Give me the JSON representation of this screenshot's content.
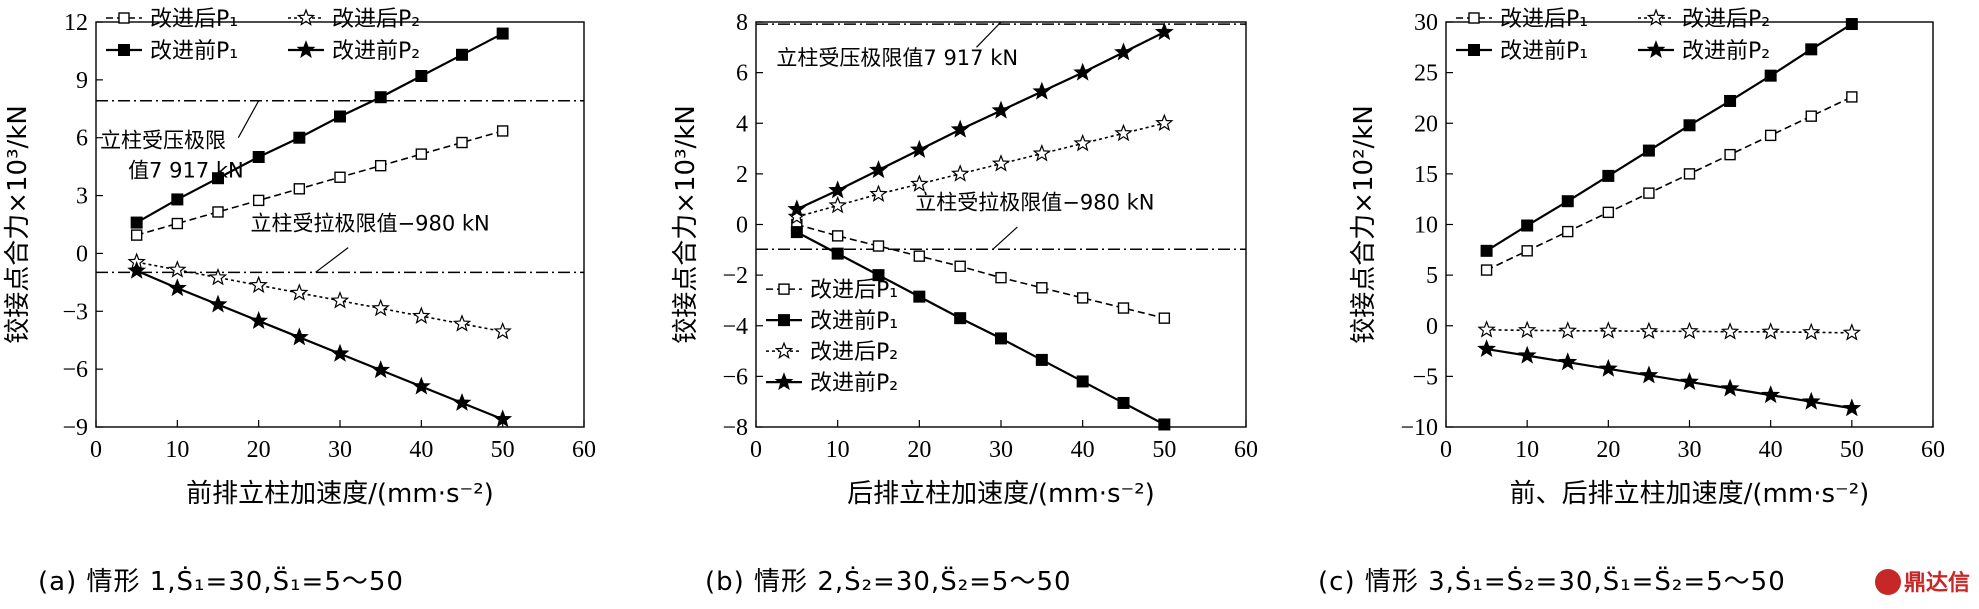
{
  "chart_data": [
    {
      "type": "line",
      "id": "a",
      "caption": "(a) 情形 1,Ṡ₁=30,S̈₁=5～50",
      "xlabel": "前排立柱加速度/(mm·s⁻²)",
      "ylabel": "铰接点合力×10³/kN",
      "xlim": [
        0,
        60
      ],
      "ylim": [
        -9,
        12
      ],
      "xticks": [
        0,
        10,
        20,
        30,
        40,
        50,
        60
      ],
      "yticks": [
        -9,
        -6,
        -3,
        0,
        3,
        6,
        9,
        12
      ],
      "x": [
        5,
        10,
        15,
        20,
        25,
        30,
        35,
        40,
        45,
        50
      ],
      "legend_layout": "grid-top-left",
      "series": [
        {
          "name": "改进后P₁",
          "style": "dashed",
          "marker": "square-open",
          "values": [
            0.95,
            1.55,
            2.15,
            2.75,
            3.35,
            3.95,
            4.55,
            5.15,
            5.75,
            6.35
          ]
        },
        {
          "name": "改进后P₂",
          "style": "dotted",
          "marker": "star-open",
          "values": [
            -0.45,
            -0.85,
            -1.25,
            -1.65,
            -2.05,
            -2.45,
            -2.85,
            -3.25,
            -3.65,
            -4.05
          ]
        },
        {
          "name": "改进前P₁",
          "style": "solid",
          "marker": "square-filled",
          "values": [
            1.6,
            2.8,
            3.9,
            5.0,
            6.0,
            7.1,
            8.1,
            9.2,
            10.3,
            11.4
          ]
        },
        {
          "name": "改进前P₂",
          "style": "solid",
          "marker": "star-filled",
          "values": [
            -0.9,
            -1.8,
            -2.65,
            -3.5,
            -4.35,
            -5.2,
            -6.05,
            -6.9,
            -7.75,
            -8.6
          ]
        }
      ],
      "hlines": [
        {
          "value": 7.917,
          "label": [
            "立柱受压极限",
            "值7 917 kN"
          ],
          "label_x": 0.5,
          "label_y": 5.5,
          "leader_x": [
            17.5,
            20
          ],
          "leader_y": [
            6.0,
            7.917
          ]
        },
        {
          "value": -0.98,
          "label": [
            "立柱受拉极限值−980 kN"
          ],
          "label_x": 19,
          "label_y": 1.2,
          "leader_x": [
            27,
            31
          ],
          "leader_y": [
            -0.98,
            0.3
          ]
        }
      ]
    },
    {
      "type": "line",
      "id": "b",
      "caption": "(b) 情形 2,Ṡ₂=30,S̈₂=5～50",
      "xlabel": "后排立柱加速度/(mm·s⁻²)",
      "ylabel": "铰接点合力×10³/kN",
      "xlim": [
        0,
        60
      ],
      "ylim": [
        -8,
        8
      ],
      "xticks": [
        0,
        10,
        20,
        30,
        40,
        50,
        60
      ],
      "yticks": [
        -8,
        -6,
        -4,
        -2,
        0,
        2,
        4,
        6,
        8
      ],
      "x": [
        5,
        10,
        15,
        20,
        25,
        30,
        35,
        40,
        45,
        50
      ],
      "legend_layout": "column-bottom-left",
      "series": [
        {
          "name": "改进后P₁",
          "style": "dashed",
          "marker": "square-open",
          "values": [
            0.0,
            -0.45,
            -0.85,
            -1.25,
            -1.65,
            -2.1,
            -2.5,
            -2.9,
            -3.3,
            -3.7
          ]
        },
        {
          "name": "改进前P₁",
          "style": "solid",
          "marker": "square-filled",
          "values": [
            -0.3,
            -1.15,
            -2.0,
            -2.85,
            -3.7,
            -4.5,
            -5.35,
            -6.2,
            -7.05,
            -7.9
          ]
        },
        {
          "name": "改进后P₂",
          "style": "dotted",
          "marker": "star-open",
          "values": [
            0.3,
            0.75,
            1.2,
            1.6,
            2.0,
            2.4,
            2.8,
            3.2,
            3.6,
            4.0
          ]
        },
        {
          "name": "改进前P₂",
          "style": "solid",
          "marker": "star-filled",
          "values": [
            0.6,
            1.35,
            2.15,
            2.95,
            3.75,
            4.5,
            5.25,
            6.0,
            6.8,
            7.6
          ]
        }
      ],
      "hlines": [
        {
          "value": 7.917,
          "label": [
            "立柱受压极限值7 917 kN"
          ],
          "label_x": 2.5,
          "label_y": 6.3,
          "leader_x": [
            27,
            30
          ],
          "leader_y": [
            7.0,
            8.0
          ]
        },
        {
          "value": -0.98,
          "label": [
            "立柱受拉极限值−980 kN"
          ],
          "label_x": 19.5,
          "label_y": 0.6,
          "leader_x": [
            29,
            32
          ],
          "leader_y": [
            -0.98,
            -0.1
          ]
        }
      ]
    },
    {
      "type": "line",
      "id": "c",
      "caption": "(c) 情形 3,Ṡ₁=Ṡ₂=30,S̈₁=S̈₂=5～50",
      "xlabel": "前、后排立柱加速度/(mm·s⁻²)",
      "ylabel": "铰接点合力×10²/kN",
      "xlim": [
        0,
        60
      ],
      "ylim": [
        -10,
        30
      ],
      "xticks": [
        0,
        10,
        20,
        30,
        40,
        50,
        60
      ],
      "yticks": [
        -10,
        -5,
        0,
        5,
        10,
        15,
        20,
        25,
        30
      ],
      "x": [
        5,
        10,
        15,
        20,
        25,
        30,
        35,
        40,
        45,
        50
      ],
      "legend_layout": "grid-top-left",
      "series": [
        {
          "name": "改进后P₁",
          "style": "dashed",
          "marker": "square-open",
          "values": [
            5.5,
            7.4,
            9.3,
            11.2,
            13.1,
            15.0,
            16.9,
            18.8,
            20.7,
            22.6
          ]
        },
        {
          "name": "改进后P₂",
          "style": "dotted",
          "marker": "star-open",
          "values": [
            -0.4,
            -0.45,
            -0.5,
            -0.5,
            -0.55,
            -0.55,
            -0.6,
            -0.6,
            -0.65,
            -0.7
          ]
        },
        {
          "name": "改进前P₁",
          "style": "solid",
          "marker": "square-filled",
          "values": [
            7.4,
            9.9,
            12.3,
            14.8,
            17.3,
            19.8,
            22.2,
            24.7,
            27.3,
            29.8
          ]
        },
        {
          "name": "改进前P₂",
          "style": "solid",
          "marker": "star-filled",
          "values": [
            -2.3,
            -2.95,
            -3.6,
            -4.25,
            -4.9,
            -5.55,
            -6.2,
            -6.85,
            -7.5,
            -8.15
          ]
        }
      ],
      "hlines": []
    }
  ],
  "watermark": "鼎达信"
}
